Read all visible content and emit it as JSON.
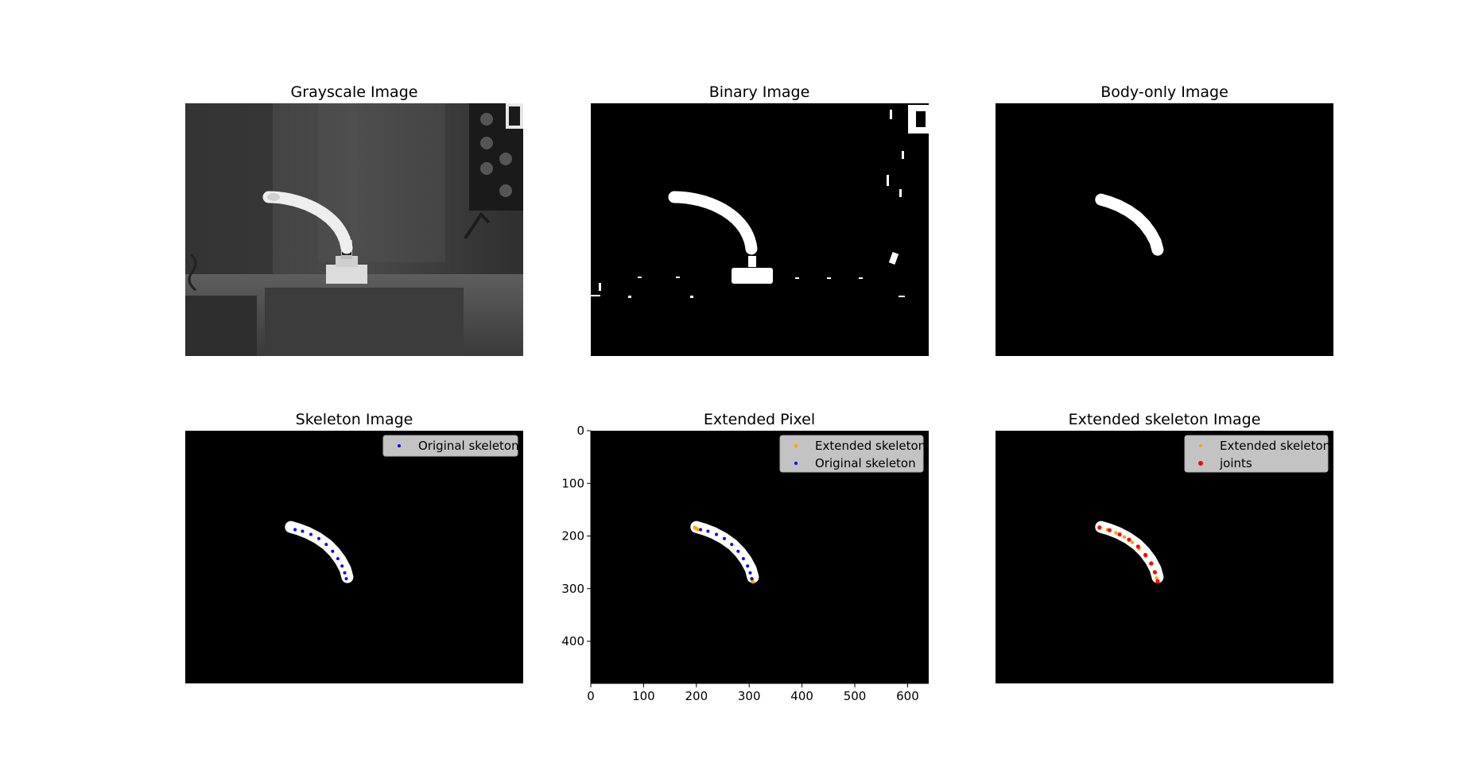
{
  "colors": {
    "background": "#ffffff",
    "panel_bg": "#000000",
    "mask": "#ffffff",
    "original_skeleton": "#0000ff",
    "extended_skeleton": "#ffa500",
    "joints": "#ff0000",
    "legend_bg": "#e6e6e6"
  },
  "chart_data": [
    {
      "type": "image",
      "title": "Grayscale Image",
      "content": "grayscale camera photo of a white segmented arm on a platform"
    },
    {
      "type": "image",
      "title": "Binary Image",
      "content": "thresholded binary mask of the scene"
    },
    {
      "type": "image",
      "title": "Body-only Image",
      "content": "binary mask of the arm body only",
      "body": {
        "x": [
          200,
          214,
          232,
          251,
          268,
          282,
          294,
          303,
          307
        ],
        "y": [
          183,
          187,
          194,
          204,
          216,
          230,
          246,
          263,
          278
        ]
      }
    },
    {
      "type": "scatter",
      "title": "Skeleton Image",
      "legend": {
        "loc": "upper right",
        "entries": [
          "Original skeleton"
        ]
      },
      "series": [
        {
          "name": "Original skeleton",
          "color": "#0000ff",
          "x": [
            208,
            222,
            238,
            253,
            267,
            279,
            289,
            297,
            302,
            305
          ],
          "y": [
            188,
            191,
            197,
            205,
            216,
            229,
            243,
            257,
            270,
            281
          ]
        }
      ]
    },
    {
      "type": "scatter",
      "title": "Extended Pixel",
      "xlim": [
        0,
        640
      ],
      "ylim": [
        480,
        0
      ],
      "xticks": [
        0,
        100,
        200,
        300,
        400,
        500,
        600
      ],
      "yticks": [
        0,
        100,
        200,
        300,
        400
      ],
      "legend": {
        "loc": "upper right",
        "entries": [
          "Extended skeleton",
          "Original skeleton"
        ]
      },
      "series": [
        {
          "name": "Extended skeleton",
          "color": "#ffa500",
          "x": [
            197,
            200,
            203,
            305,
            306,
            307
          ],
          "y": [
            184,
            186,
            188,
            281,
            284,
            287
          ]
        },
        {
          "name": "Original skeleton",
          "color": "#0000ff",
          "x": [
            208,
            222,
            238,
            253,
            267,
            279,
            289,
            297,
            302,
            305
          ],
          "y": [
            188,
            191,
            197,
            205,
            216,
            229,
            243,
            257,
            270,
            281
          ]
        }
      ]
    },
    {
      "type": "scatter",
      "title": "Extended skeleton Image",
      "legend": {
        "loc": "upper right",
        "entries": [
          "Extended skeleton",
          "joints"
        ]
      },
      "series": [
        {
          "name": "Extended skeleton",
          "color": "#ffa500",
          "x": [
            197,
            212,
            228,
            244,
            259,
            272,
            284,
            294,
            301,
            305,
            307
          ],
          "y": [
            184,
            188,
            194,
            202,
            212,
            224,
            238,
            253,
            268,
            280,
            287
          ]
        },
        {
          "name": "joints",
          "color": "#ff0000",
          "x": [
            197,
            216,
            235,
            253,
            270,
            284,
            295,
            302,
            307
          ],
          "y": [
            184,
            189,
            197,
            207,
            220,
            236,
            252,
            269,
            286
          ]
        }
      ]
    }
  ]
}
